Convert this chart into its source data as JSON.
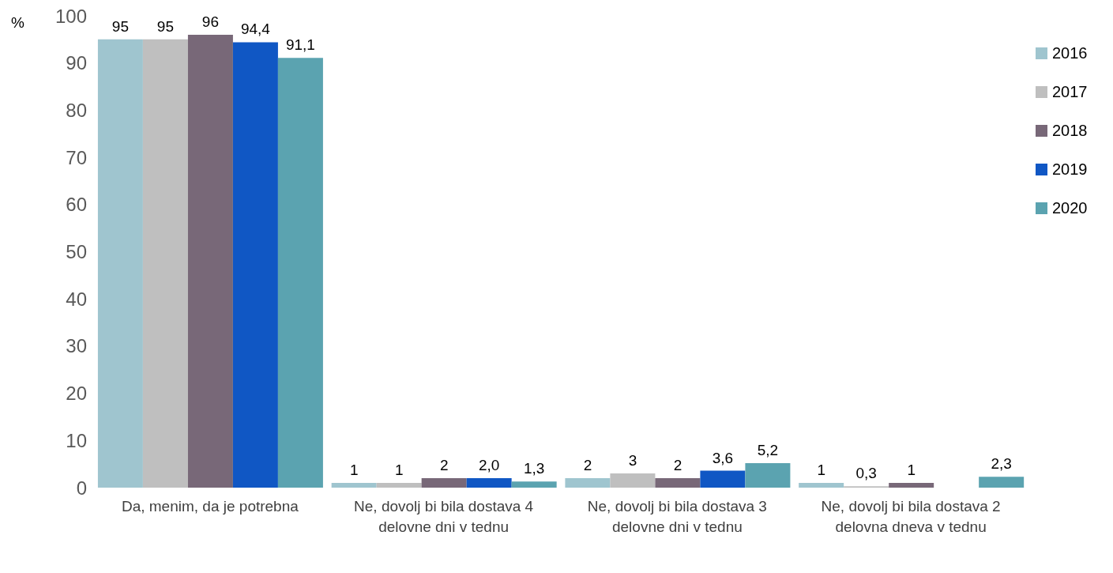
{
  "chart_data": {
    "type": "bar",
    "ylabel": "%",
    "categories": [
      "Da, menim, da je potrebna",
      "Ne, dovolj bi bila dostava 4 delovne dni v tednu",
      "Ne, dovolj bi bila dostava 3 delovne dni v tednu",
      "Ne, dovolj bi bila dostava 2 delovna dneva v tednu"
    ],
    "series": [
      {
        "name": "2016",
        "color": "#9fc5cf",
        "values": [
          95,
          1,
          2,
          1
        ],
        "value_labels": [
          "95",
          "1",
          "2",
          "1"
        ]
      },
      {
        "name": "2017",
        "color": "#bfbfbf",
        "values": [
          95,
          1,
          3,
          0.3
        ],
        "value_labels": [
          "95",
          "1",
          "3",
          "0,3"
        ]
      },
      {
        "name": "2018",
        "color": "#786878",
        "values": [
          96,
          2,
          2,
          1
        ],
        "value_labels": [
          "96",
          "2",
          "2",
          "1"
        ]
      },
      {
        "name": "2019",
        "color": "#1057c4",
        "values": [
          94.4,
          2.0,
          3.6,
          null
        ],
        "value_labels": [
          "94,4",
          "2,0",
          "3,6",
          null
        ]
      },
      {
        "name": "2020",
        "color": "#5ba3b0",
        "values": [
          91.1,
          1.3,
          5.2,
          2.3
        ],
        "value_labels": [
          "91,1",
          "1,3",
          "5,2",
          "2,3"
        ]
      }
    ],
    "ylim": [
      0,
      100
    ],
    "yticks": [
      0,
      10,
      20,
      30,
      40,
      50,
      60,
      70,
      80,
      90,
      100
    ],
    "grid": false,
    "legend": "right"
  }
}
